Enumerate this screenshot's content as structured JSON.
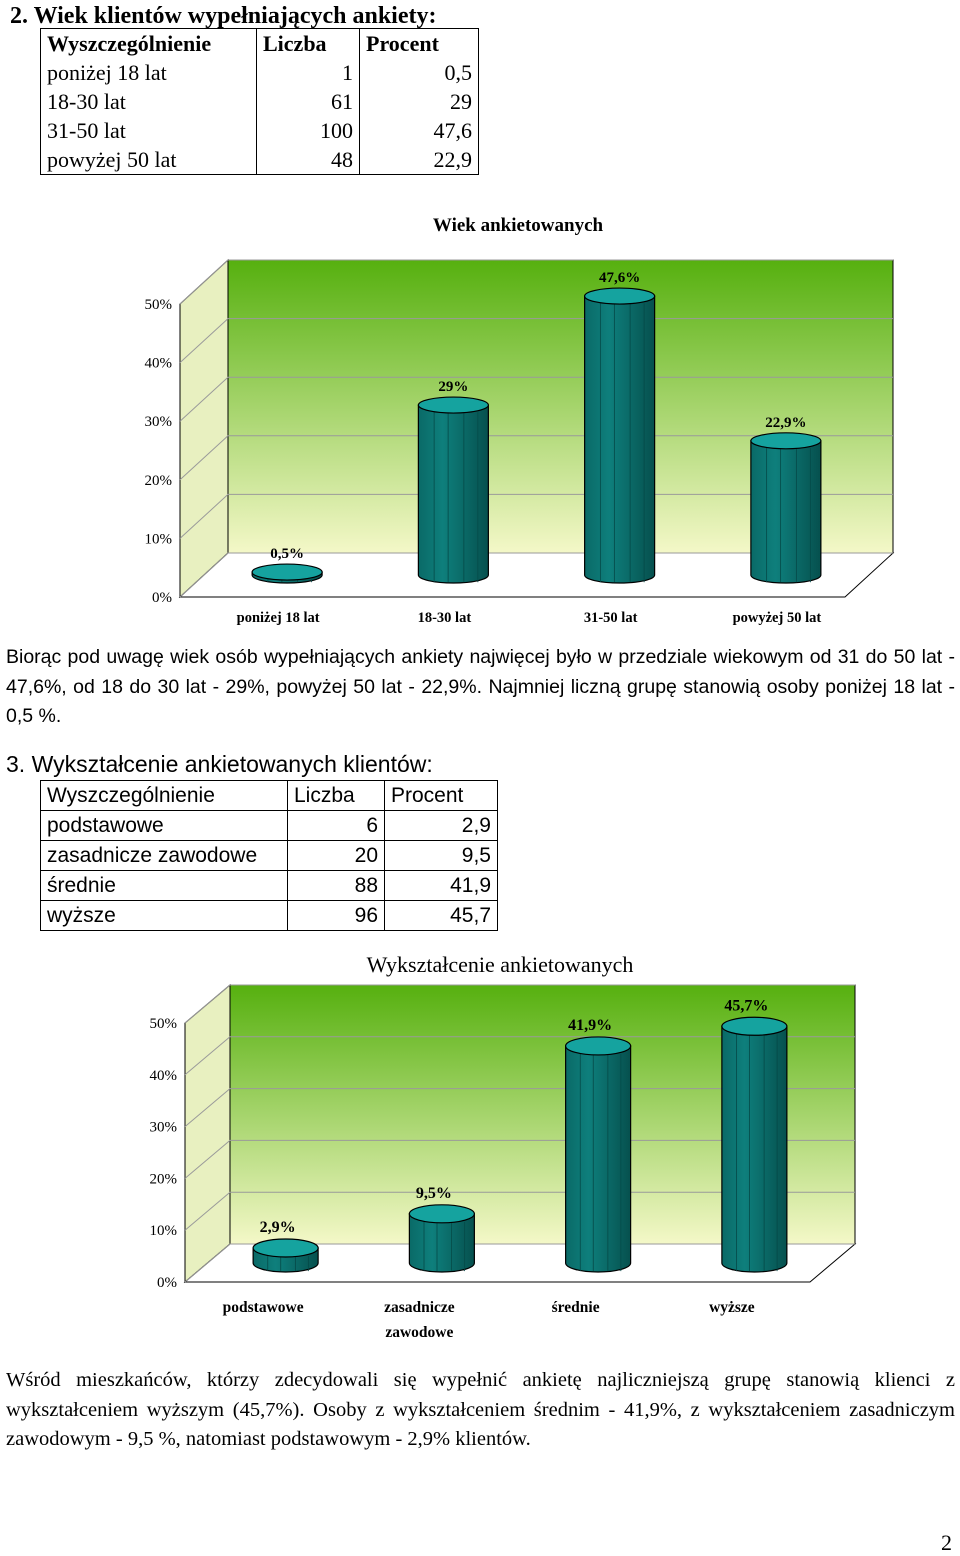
{
  "section2": {
    "heading": "2.  Wiek klientów wypełniających ankiety:",
    "table": {
      "headers": [
        "Wyszczególnienie",
        "Liczba",
        "Procent"
      ],
      "rows": [
        [
          "poniżej 18 lat",
          "1",
          "0,5"
        ],
        [
          "18-30 lat",
          "61",
          "29"
        ],
        [
          "31-50 lat",
          "100",
          "47,6"
        ],
        [
          "powyżej 50 lat",
          "48",
          "22,9"
        ]
      ]
    },
    "paragraph": "Biorąc pod uwagę wiek osób wypełniających ankiety najwięcej było w przedziale wiekowym od 31 do 50 lat - 47,6%, od 18 do 30 lat  - 29%, powyżej 50 lat - 22,9%. Najmniej liczną grupę stanowią osoby poniżej 18 lat - 0,5 %."
  },
  "section3": {
    "heading": "3.  Wykształcenie ankietowanych klientów:",
    "table": {
      "headers": [
        "Wyszczególnienie",
        "Liczba",
        "Procent"
      ],
      "rows": [
        [
          "podstawowe",
          "6",
          "2,9"
        ],
        [
          "zasadnicze zawodowe",
          "20",
          "9,5"
        ],
        [
          "średnie",
          "88",
          "41,9"
        ],
        [
          "wyższe",
          "96",
          "45,7"
        ]
      ]
    },
    "paragraph": "Wśród mieszkańców, którzy zdecydowali się wypełnić ankietę najliczniejszą grupę stanowią klienci z wykształceniem wyższym (45,7%). Osoby z wykształceniem średnim - 41,9%, z wykształceniem zasadniczym zawodowym - 9,5 %, natomiast podstawowym - 2,9% klientów."
  },
  "page_number": "2",
  "colors": {
    "bar_face": "#0e7f7c",
    "bar_top": "#15a39f",
    "back_wall_top": "#56b00f",
    "back_wall_bottom": "#f4f8c8"
  },
  "chart_data": [
    {
      "type": "bar",
      "title": "Wiek ankietowanych",
      "categories": [
        "poniżej 18 lat",
        "18-30 lat",
        "31-50 lat",
        "powyżej 50 lat"
      ],
      "values": [
        0.5,
        29,
        47.6,
        22.9
      ],
      "data_labels": [
        "0,5%",
        "29%",
        "47,6%",
        "22,9%"
      ],
      "y_ticks": [
        "0%",
        "10%",
        "20%",
        "30%",
        "40%",
        "50%"
      ],
      "ylim": [
        0,
        50
      ],
      "grid": true,
      "style": "3d-cylinder"
    },
    {
      "type": "bar",
      "title": "Wykształcenie ankietowanych",
      "categories": [
        "podstawowe",
        "zasadnicze zawodowe",
        "średnie",
        "wyższe"
      ],
      "category_lines": [
        [
          "podstawowe"
        ],
        [
          "zasadnicze",
          "zawodowe"
        ],
        [
          "średnie"
        ],
        [
          "wyższe"
        ]
      ],
      "values": [
        2.9,
        9.5,
        41.9,
        45.7
      ],
      "data_labels": [
        "2,9%",
        "9,5%",
        "41,9%",
        "45,7%"
      ],
      "y_ticks": [
        "0%",
        "10%",
        "20%",
        "30%",
        "40%",
        "50%"
      ],
      "ylim": [
        0,
        50
      ],
      "grid": true,
      "style": "3d-cylinder"
    }
  ]
}
